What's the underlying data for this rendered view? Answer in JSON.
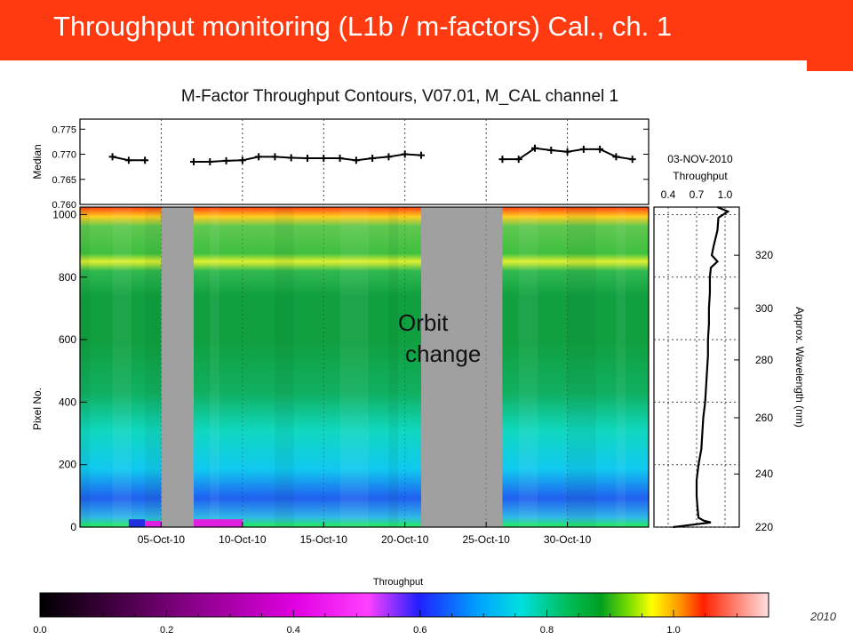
{
  "slide": {
    "title": "Throughput monitoring (L1b / m-factors) Cal., ch. 1",
    "footer_fragment": "2010"
  },
  "colors": {
    "title_bar": "#ff3a10",
    "gap_gray": "#a0a0a0"
  },
  "chart_data": [
    {
      "type": "line",
      "title": "M-Factor Throughput Contours, V07.01, M_CAL channel 1",
      "ylabel": "Median",
      "ylim": [
        0.76,
        0.777
      ],
      "yticks": [
        "0.775",
        "0.770",
        "0.765",
        "0.760"
      ],
      "x_dates": [
        "05-Oct-10",
        "10-Oct-10",
        "15-Oct-10",
        "20-Oct-10",
        "25-Oct-10",
        "30-Oct-10"
      ],
      "grid": true,
      "segments": [
        {
          "x": [
            "2010-10-02",
            "2010-10-03",
            "2010-10-04"
          ],
          "y": [
            0.7695,
            0.7688,
            0.7688
          ]
        },
        {
          "x": [
            "2010-10-07",
            "2010-10-08",
            "2010-10-09",
            "2010-10-10",
            "2010-10-11",
            "2010-10-12",
            "2010-10-13",
            "2010-10-14",
            "2010-10-15",
            "2010-10-16",
            "2010-10-17",
            "2010-10-18",
            "2010-10-19",
            "2010-10-20",
            "2010-10-21"
          ],
          "y": [
            0.7685,
            0.7685,
            0.7687,
            0.7688,
            0.7695,
            0.7695,
            0.7693,
            0.7692,
            0.7692,
            0.7692,
            0.7688,
            0.7692,
            0.7695,
            0.77,
            0.7698
          ]
        },
        {
          "x": [
            "2010-10-26",
            "2010-10-27",
            "2010-10-28",
            "2010-10-29",
            "2010-10-30",
            "2010-10-31",
            "2010-11-01",
            "2010-11-02",
            "2010-11-03"
          ],
          "y": [
            0.769,
            0.769,
            0.7712,
            0.7708,
            0.7705,
            0.771,
            0.771,
            0.7695,
            0.769
          ]
        }
      ]
    },
    {
      "type": "heatmap",
      "ylabel": "Pixel No.",
      "ylim": [
        0,
        1024
      ],
      "yticks": [
        "1000",
        "800",
        "600",
        "400",
        "200",
        "0"
      ],
      "x_dates": [
        "05-Oct-10",
        "10-Oct-10",
        "15-Oct-10",
        "20-Oct-10",
        "25-Oct-10",
        "30-Oct-10"
      ],
      "grid": true,
      "data_gaps": [
        {
          "from": "2010-10-05",
          "to": "2010-10-07"
        },
        {
          "from": "2010-10-21",
          "to": "2010-10-26"
        }
      ],
      "annotation": {
        "line1": "Orbit",
        "line2": "change"
      },
      "colorbar": {
        "label": "Throughput",
        "range": [
          0.0,
          1.15
        ],
        "ticks": [
          "0.0",
          "0.2",
          "0.4",
          "0.6",
          "0.8",
          "1.0"
        ]
      }
    },
    {
      "type": "line",
      "title_line1": "03-NOV-2010",
      "title_line2": "Throughput",
      "xticks": [
        "0.4",
        "0.7",
        "1.0"
      ],
      "xlim": [
        0.25,
        1.15
      ],
      "right_ylabel": "Approx. Wavelength (nm)",
      "right_yticks": [
        "320",
        "300",
        "280",
        "260",
        "240",
        "220"
      ],
      "profile": {
        "pixel": [
          0,
          15,
          20,
          30,
          60,
          100,
          150,
          200,
          250,
          300,
          350,
          400,
          450,
          500,
          550,
          600,
          650,
          700,
          750,
          800,
          830,
          850,
          870,
          900,
          950,
          990,
          1010,
          1024
        ],
        "throughput": [
          0.45,
          0.85,
          0.78,
          0.72,
          0.71,
          0.7,
          0.7,
          0.72,
          0.75,
          0.76,
          0.77,
          0.79,
          0.8,
          0.81,
          0.82,
          0.82,
          0.83,
          0.83,
          0.84,
          0.84,
          0.85,
          0.92,
          0.86,
          0.88,
          0.92,
          0.93,
          1.03,
          0.92
        ]
      }
    }
  ]
}
